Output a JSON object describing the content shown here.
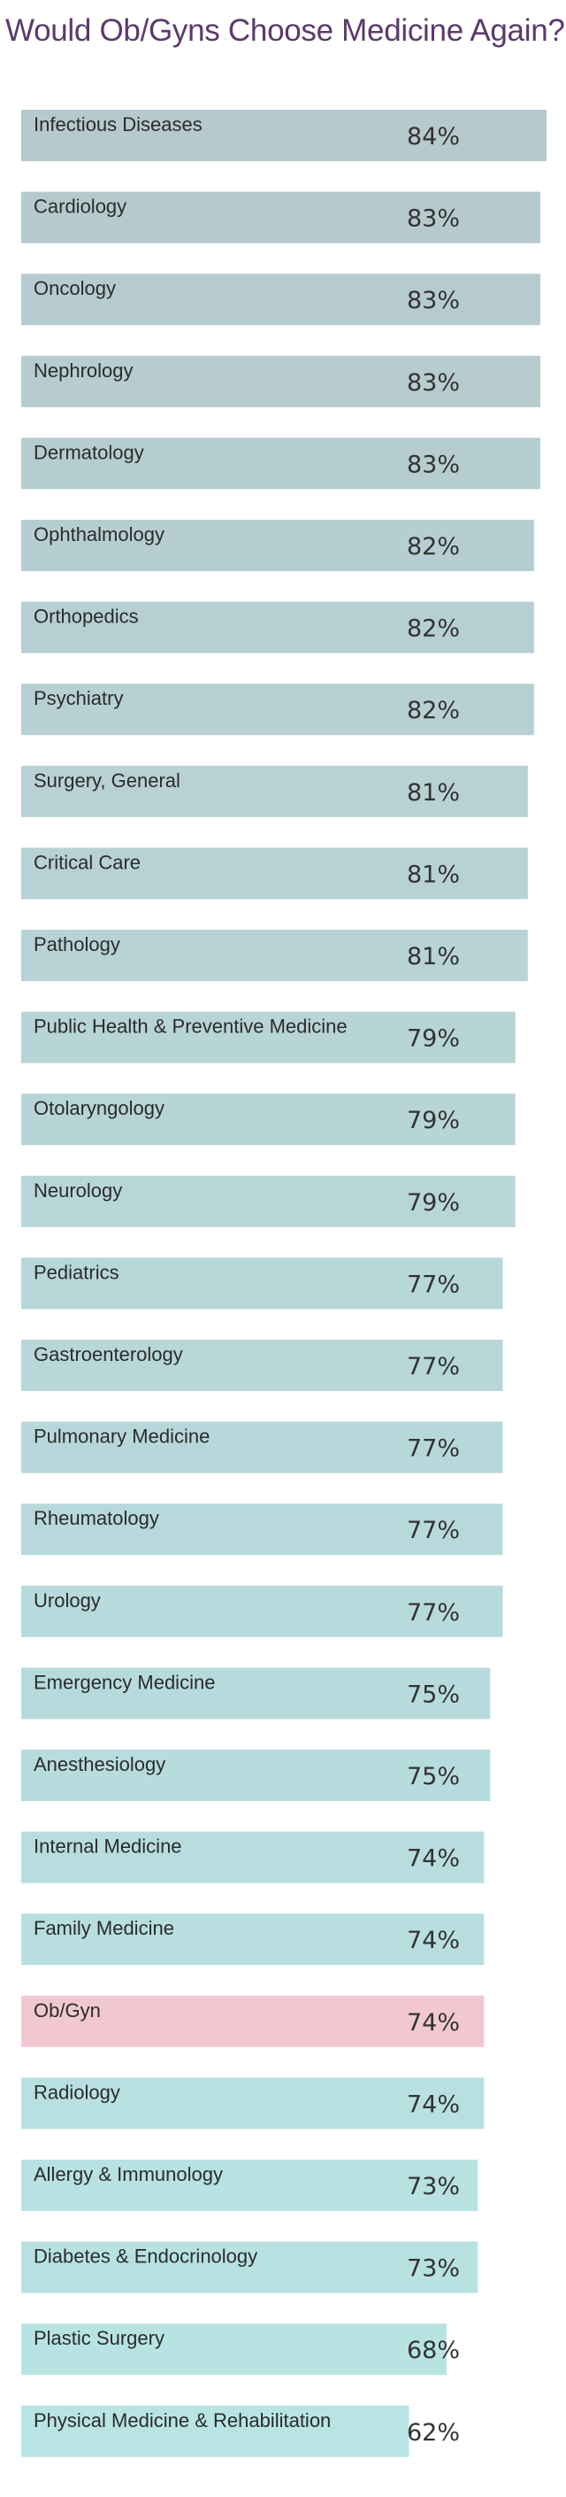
{
  "chart_data": {
    "type": "bar",
    "orientation": "horizontal",
    "title": "Would Ob/Gyns Choose Medicine Again?",
    "unit": "%",
    "xlim": [
      0,
      84
    ],
    "categories": [
      "Infectious Diseases",
      "Cardiology",
      "Oncology",
      "Nephrology",
      "Dermatology",
      "Ophthalmology",
      "Orthopedics",
      "Psychiatry",
      "Surgery, General",
      "Critical Care",
      "Pathology",
      "Public Health & Preventive Medicine",
      "Otolaryngology",
      "Neurology",
      "Pediatrics",
      "Gastroenterology",
      "Pulmonary Medicine",
      "Rheumatology",
      "Urology",
      "Emergency Medicine",
      "Anesthesiology",
      "Internal Medicine",
      "Family Medicine",
      "Ob/Gyn",
      "Radiology",
      "Allergy & Immunology",
      "Diabetes & Endocrinology",
      "Plastic Surgery",
      "Physical Medicine & Rehabilitation"
    ],
    "values": [
      84,
      83,
      83,
      83,
      83,
      82,
      82,
      82,
      81,
      81,
      81,
      79,
      79,
      79,
      77,
      77,
      77,
      77,
      77,
      75,
      75,
      74,
      74,
      74,
      74,
      73,
      73,
      68,
      62
    ],
    "highlight_category": "Ob/Gyn",
    "colors": {
      "title": "#5b3a6b",
      "bar_top": "#b6c9cd",
      "bar_bottom": "#b8e4e4",
      "highlight_bar": "#f1c8d1",
      "highlight_text": "#c8507a",
      "label_text": "#2b2b2b",
      "value_text": "#333333"
    }
  }
}
